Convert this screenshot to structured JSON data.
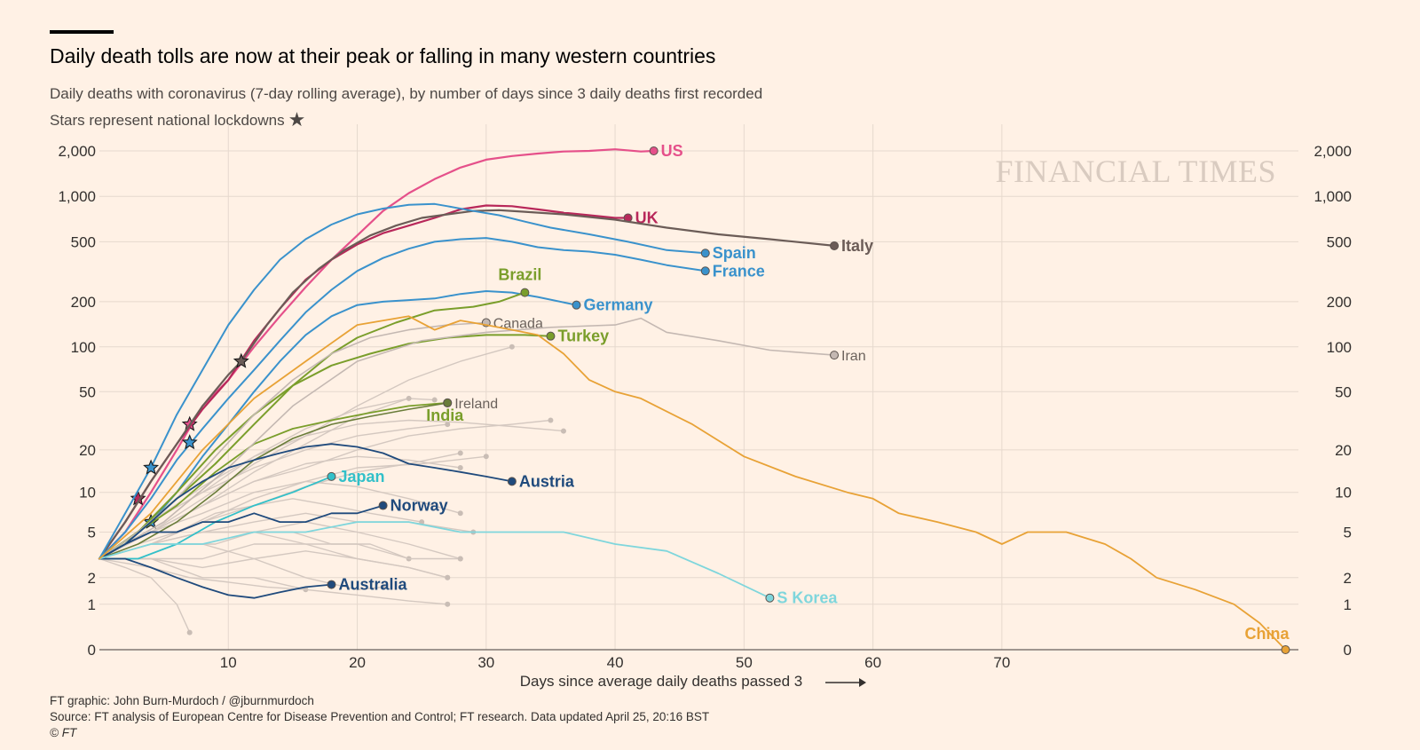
{
  "header": {
    "title": "Daily death tolls are now at their peak or falling in many western countries",
    "subtitle": "Daily deaths with coronavirus (7-day rolling average), by number of days since 3 daily deaths first recorded",
    "subtitle2": "Stars represent national lockdowns",
    "brand": "FINANCIAL TIMES"
  },
  "footer": {
    "credit": "FT graphic: John Burn-Murdoch / @jburnmurdoch",
    "source": "Source: FT analysis of European Centre for Disease Prevention and Control; FT research. Data updated April 25, 20:16 BST",
    "copyright": "© FT"
  },
  "chart_data": {
    "type": "line",
    "title": "Daily death tolls are now at their peak or falling in many western countries",
    "xlabel": "Days since average daily deaths passed 3",
    "ylabel": "",
    "xlim": [
      0,
      93
    ],
    "ylim": [
      0,
      2000
    ],
    "y_scale": "log",
    "x_ticks": [
      10,
      20,
      30,
      40,
      50,
      60,
      70
    ],
    "y_ticks": [
      0,
      1,
      2,
      5,
      10,
      20,
      50,
      100,
      200,
      500,
      1000,
      2000
    ],
    "y_tick_labels": [
      "0",
      "1",
      "2",
      "5",
      "10",
      "20",
      "50",
      "100",
      "200",
      "500",
      "1,000",
      "2,000"
    ],
    "grid": true,
    "series": [
      {
        "name": "US",
        "color": "#e5508a",
        "lw": 2.2,
        "label_bold": true,
        "stars": [
          7
        ],
        "x": [
          0,
          2,
          4,
          6,
          8,
          10,
          12,
          14,
          16,
          18,
          20,
          22,
          24,
          26,
          28,
          30,
          32,
          34,
          36,
          38,
          40,
          42,
          43
        ],
        "y": [
          3,
          5,
          10,
          20,
          40,
          60,
          100,
          160,
          250,
          380,
          550,
          800,
          1050,
          1300,
          1550,
          1750,
          1850,
          1920,
          1980,
          2000,
          2050,
          1980,
          2000
        ]
      },
      {
        "name": "UK",
        "color": "#b8285a",
        "lw": 2.2,
        "label_bold": true,
        "stars": [
          3
        ],
        "x": [
          0,
          2,
          4,
          6,
          8,
          10,
          12,
          14,
          16,
          18,
          20,
          22,
          24,
          26,
          28,
          30,
          32,
          34,
          36,
          38,
          40,
          41
        ],
        "y": [
          3,
          6,
          12,
          22,
          38,
          60,
          110,
          180,
          280,
          380,
          480,
          570,
          640,
          720,
          820,
          870,
          860,
          820,
          780,
          750,
          720,
          720
        ]
      },
      {
        "name": "Italy",
        "color": "#6b5c57",
        "lw": 2.2,
        "label_bold": true,
        "stars": [
          11
        ],
        "x": [
          0,
          2,
          4,
          6,
          8,
          10,
          11,
          13,
          15,
          17,
          19,
          21,
          23,
          25,
          27,
          29,
          31,
          33,
          36,
          40,
          44,
          48,
          52,
          57
        ],
        "y": [
          3,
          6,
          12,
          22,
          40,
          65,
          80,
          140,
          230,
          330,
          440,
          550,
          640,
          720,
          760,
          800,
          810,
          790,
          760,
          700,
          620,
          560,
          520,
          470
        ]
      },
      {
        "name": "Spain",
        "color": "#3a92cc",
        "lw": 2.0,
        "label_bold": true,
        "stars": [
          4
        ],
        "x": [
          0,
          2,
          4,
          6,
          8,
          10,
          12,
          14,
          16,
          18,
          20,
          22,
          24,
          26,
          27,
          29,
          31,
          33,
          35,
          38,
          41,
          44,
          47
        ],
        "y": [
          3,
          7,
          15,
          35,
          70,
          140,
          240,
          380,
          520,
          650,
          760,
          830,
          880,
          890,
          860,
          800,
          750,
          680,
          620,
          560,
          500,
          440,
          420
        ]
      },
      {
        "name": "France",
        "color": "#3a92cc",
        "lw": 2.0,
        "label_bold": true,
        "stars": [
          7
        ],
        "x": [
          0,
          2,
          4,
          6,
          8,
          10,
          12,
          14,
          16,
          18,
          20,
          22,
          24,
          26,
          28,
          30,
          32,
          34,
          36,
          38,
          40,
          42,
          44,
          47
        ],
        "y": [
          3,
          5,
          9,
          17,
          28,
          45,
          70,
          110,
          170,
          240,
          320,
          390,
          450,
          500,
          520,
          530,
          500,
          460,
          440,
          430,
          410,
          380,
          350,
          320
        ]
      },
      {
        "name": "Germany",
        "color": "#3a92cc",
        "lw": 2.0,
        "label_bold": true,
        "stars": [
          4
        ],
        "x": [
          0,
          2,
          4,
          6,
          8,
          10,
          12,
          14,
          16,
          18,
          20,
          22,
          24,
          26,
          28,
          30,
          32,
          34,
          37
        ],
        "y": [
          3,
          4,
          6,
          10,
          18,
          30,
          50,
          80,
          120,
          160,
          190,
          200,
          205,
          210,
          225,
          235,
          230,
          215,
          190
        ]
      },
      {
        "name": "Brazil",
        "color": "#7a9e2b",
        "lw": 2.0,
        "label_bold": true,
        "label_above": true,
        "stars": [],
        "x": [
          0,
          3,
          6,
          9,
          12,
          15,
          18,
          20,
          23,
          26,
          29,
          31,
          33
        ],
        "y": [
          3,
          5,
          9,
          16,
          30,
          55,
          90,
          115,
          145,
          175,
          185,
          200,
          230
        ]
      },
      {
        "name": "Turkey",
        "color": "#7a9e2b",
        "lw": 2.0,
        "label_bold": true,
        "stars": [],
        "x": [
          0,
          3,
          6,
          9,
          12,
          15,
          18,
          21,
          24,
          27,
          30,
          33,
          35
        ],
        "y": [
          3,
          5,
          10,
          20,
          35,
          55,
          75,
          90,
          105,
          115,
          120,
          120,
          118
        ]
      },
      {
        "name": "India",
        "color": "#7a9e2b",
        "lw": 1.8,
        "label_bold": true,
        "label_below": true,
        "stars": [],
        "x": [
          0,
          3,
          6,
          9,
          12,
          15,
          18,
          21,
          24,
          27
        ],
        "y": [
          3,
          5,
          8,
          14,
          22,
          28,
          32,
          36,
          40,
          42
        ]
      },
      {
        "name": "Canada",
        "color": "#c4b8b2",
        "lw": 1.6,
        "label_bold": false,
        "stars": [],
        "x": [
          0,
          3,
          6,
          9,
          12,
          15,
          18,
          21,
          24,
          27,
          30
        ],
        "y": [
          3,
          5,
          9,
          18,
          35,
          60,
          90,
          115,
          130,
          140,
          145
        ]
      },
      {
        "name": "Iran",
        "color": "#c4b8b2",
        "lw": 1.6,
        "label_bold": false,
        "stars": [],
        "x": [
          0,
          5,
          10,
          15,
          20,
          25,
          30,
          35,
          40,
          42,
          44,
          48,
          52,
          57
        ],
        "y": [
          3,
          6,
          15,
          40,
          80,
          110,
          125,
          135,
          140,
          155,
          125,
          110,
          95,
          88
        ]
      },
      {
        "name": "Ireland",
        "color": "#6a7d3a",
        "lw": 1.6,
        "label_bold": false,
        "stars": [],
        "x": [
          0,
          3,
          6,
          9,
          12,
          15,
          18,
          21,
          24,
          27
        ],
        "y": [
          3,
          4,
          6,
          10,
          17,
          24,
          30,
          34,
          38,
          42
        ]
      },
      {
        "name": "Austria",
        "color": "#1f4a7c",
        "lw": 1.8,
        "label_bold": true,
        "stars": [],
        "x": [
          0,
          2,
          4,
          6,
          8,
          10,
          12,
          14,
          16,
          18,
          20,
          22,
          24,
          26,
          28,
          30,
          32
        ],
        "y": [
          3,
          4,
          6,
          9,
          12,
          15,
          17,
          19,
          21,
          22,
          21,
          19,
          16,
          15,
          14,
          13,
          12
        ]
      },
      {
        "name": "Japan",
        "color": "#32c0c9",
        "lw": 1.8,
        "label_bold": true,
        "stars": [],
        "x": [
          0,
          3,
          6,
          9,
          12,
          15,
          18
        ],
        "y": [
          3,
          3,
          4,
          6,
          8,
          10,
          13
        ]
      },
      {
        "name": "Norway",
        "color": "#1f4a7c",
        "lw": 1.8,
        "label_bold": true,
        "stars": [],
        "x": [
          0,
          2,
          4,
          6,
          8,
          10,
          12,
          14,
          16,
          18,
          20,
          22
        ],
        "y": [
          3,
          4,
          5,
          5,
          6,
          6,
          7,
          6,
          6,
          7,
          7,
          8
        ]
      },
      {
        "name": "Australia",
        "color": "#1f4a7c",
        "lw": 1.8,
        "label_bold": true,
        "stars": [],
        "x": [
          0,
          2,
          4,
          6,
          8,
          10,
          12,
          14,
          16,
          18
        ],
        "y": [
          3,
          3,
          2.5,
          2,
          1.6,
          1.3,
          1.2,
          1.4,
          1.6,
          1.7
        ]
      },
      {
        "name": "S Korea",
        "color": "#7fd6dc",
        "lw": 1.8,
        "label_bold": true,
        "stars": [],
        "x": [
          0,
          4,
          8,
          12,
          16,
          20,
          24,
          28,
          32,
          36,
          40,
          44,
          48,
          52
        ],
        "y": [
          3,
          4,
          4,
          5,
          5,
          6,
          6,
          5,
          5,
          5,
          4,
          3.5,
          2.2,
          1.2
        ]
      },
      {
        "name": "China",
        "color": "#e8a236",
        "lw": 1.8,
        "label_bold": true,
        "stars": [],
        "x": [
          0,
          4,
          8,
          12,
          16,
          20,
          24,
          26,
          28,
          30,
          32,
          34,
          36,
          38,
          40,
          42,
          46,
          50,
          54,
          58,
          60,
          62,
          65,
          68,
          70,
          72,
          75,
          78,
          80,
          82,
          85,
          88,
          90,
          92
        ],
        "y": [
          3,
          7,
          20,
          45,
          80,
          140,
          160,
          130,
          150,
          140,
          130,
          120,
          90,
          60,
          50,
          45,
          30,
          18,
          13,
          10,
          9,
          7,
          6,
          5,
          4,
          5,
          5,
          4,
          3,
          2,
          1.5,
          1,
          0.5,
          0
        ]
      }
    ],
    "background_series_note": "",
    "background_series": [
      {
        "x": [
          0,
          4,
          8,
          12,
          16,
          20,
          24,
          28
        ],
        "y": [
          3,
          5,
          8,
          12,
          16,
          18,
          17,
          15
        ]
      },
      {
        "x": [
          0,
          4,
          8,
          12,
          16,
          20,
          25,
          30
        ],
        "y": [
          3,
          4,
          6,
          9,
          12,
          15,
          16,
          18
        ]
      },
      {
        "x": [
          0,
          4,
          8,
          12,
          16,
          20,
          24,
          27
        ],
        "y": [
          3,
          6,
          10,
          15,
          20,
          25,
          28,
          30
        ]
      },
      {
        "x": [
          0,
          4,
          8,
          12,
          16,
          20,
          24,
          29
        ],
        "y": [
          3,
          4,
          5,
          6,
          7,
          6,
          6,
          5
        ]
      },
      {
        "x": [
          0,
          3,
          6,
          9,
          12,
          15,
          18,
          21,
          24
        ],
        "y": [
          3,
          3,
          4,
          4,
          5,
          5,
          4,
          4,
          3
        ]
      },
      {
        "x": [
          0,
          4,
          8,
          12,
          16,
          20,
          24,
          27
        ],
        "y": [
          3,
          3,
          2.5,
          3,
          3.5,
          3,
          2.5,
          2
        ]
      },
      {
        "x": [
          0,
          4,
          8,
          12,
          16,
          20,
          24,
          28
        ],
        "y": [
          3,
          5,
          7,
          10,
          12,
          11,
          9,
          7
        ]
      },
      {
        "x": [
          0,
          3,
          6,
          9,
          12,
          15,
          18,
          21,
          25
        ],
        "y": [
          3,
          4,
          5,
          7,
          8,
          9,
          8,
          7,
          6
        ]
      },
      {
        "x": [
          0,
          4,
          8,
          12,
          16,
          20,
          24,
          28
        ],
        "y": [
          3,
          4,
          5,
          5,
          6,
          5,
          4,
          3
        ]
      },
      {
        "x": [
          0,
          4,
          7,
          10,
          13,
          16
        ],
        "y": [
          3,
          2.5,
          2,
          1.8,
          1.6,
          1.5
        ]
      },
      {
        "x": [
          0,
          2,
          4,
          6,
          7
        ],
        "y": [
          3,
          2.5,
          2,
          1,
          0.3
        ]
      },
      {
        "x": [
          0,
          4,
          8,
          12,
          16,
          20,
          24,
          28,
          32,
          36
        ],
        "y": [
          3,
          6,
          10,
          18,
          25,
          30,
          32,
          31,
          29,
          27
        ]
      },
      {
        "x": [
          0,
          4,
          8,
          12,
          16,
          20,
          24,
          26
        ],
        "y": [
          3,
          6,
          11,
          18,
          28,
          38,
          45,
          44
        ]
      },
      {
        "x": [
          0,
          4,
          8,
          12,
          16,
          20,
          24,
          28,
          32,
          35
        ],
        "y": [
          3,
          5,
          8,
          12,
          15,
          20,
          25,
          28,
          30,
          32
        ]
      },
      {
        "x": [
          0,
          4,
          8,
          12,
          16,
          20,
          24,
          28
        ],
        "y": [
          3,
          4,
          6,
          8,
          11,
          14,
          16,
          19
        ]
      },
      {
        "x": [
          0,
          4,
          8,
          12,
          16,
          20,
          24,
          27
        ],
        "y": [
          3,
          3,
          3,
          4,
          4,
          3,
          2.5,
          2
        ]
      },
      {
        "x": [
          0,
          4,
          8,
          12,
          16,
          20,
          24,
          27
        ],
        "y": [
          3,
          3,
          2,
          2,
          1.5,
          1.3,
          1.1,
          1
        ]
      },
      {
        "x": [
          0,
          4,
          8,
          12,
          16,
          20,
          24,
          28
        ],
        "y": [
          3,
          4,
          5,
          5,
          4,
          4,
          3,
          3
        ]
      },
      {
        "x": [
          0,
          4,
          8,
          12,
          16,
          20,
          24,
          28,
          32
        ],
        "y": [
          3,
          5,
          9,
          16,
          25,
          40,
          60,
          80,
          100
        ]
      },
      {
        "x": [
          0,
          4,
          8,
          12,
          16,
          20,
          24
        ],
        "y": [
          3,
          5,
          8,
          14,
          22,
          34,
          45
        ]
      },
      {
        "x": [
          0,
          4,
          8,
          12,
          16,
          20,
          22
        ],
        "y": [
          3,
          4,
          4,
          3,
          2,
          1.5,
          1.6
        ]
      }
    ]
  }
}
